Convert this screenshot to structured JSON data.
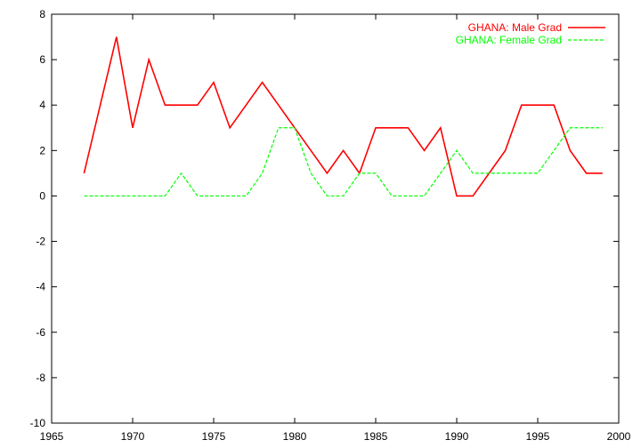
{
  "chart_data": {
    "type": "line",
    "title": "",
    "xlabel": "",
    "ylabel": "",
    "xlim": [
      1965,
      2000
    ],
    "ylim": [
      -10,
      8
    ],
    "x_ticks": [
      1965,
      1970,
      1975,
      1980,
      1985,
      1990,
      1995,
      2000
    ],
    "y_ticks": [
      -10,
      -8,
      -6,
      -4,
      -2,
      0,
      2,
      4,
      6,
      8
    ],
    "x_tick_labels": [
      "1965",
      "1970",
      "1975",
      "1980",
      "1985",
      "1990",
      "1995",
      "2000"
    ],
    "y_tick_labels": [
      "-10",
      "-8",
      "-6",
      "-4",
      "-2",
      "0",
      "2",
      "4",
      "6",
      "8"
    ],
    "grid": false,
    "legend_position": "top-right",
    "series": [
      {
        "name": "GHANA: Male Grad",
        "color": "#ff0000",
        "line_style": "solid",
        "x": [
          1967,
          1968,
          1969,
          1970,
          1971,
          1972,
          1973,
          1974,
          1975,
          1976,
          1977,
          1978,
          1979,
          1980,
          1981,
          1982,
          1983,
          1984,
          1985,
          1986,
          1987,
          1988,
          1989,
          1990,
          1991,
          1992,
          1993,
          1994,
          1995,
          1996,
          1997,
          1998,
          1999
        ],
        "values": [
          1,
          4,
          7,
          3,
          6,
          4,
          4,
          4,
          5,
          3,
          4,
          5,
          4,
          3,
          2,
          1,
          2,
          1,
          3,
          3,
          3,
          2,
          3,
          0,
          0,
          1,
          2,
          4,
          4,
          4,
          2,
          1,
          1
        ]
      },
      {
        "name": "GHANA: Female Grad",
        "color": "#00ff00",
        "line_style": "dashed",
        "x": [
          1967,
          1968,
          1969,
          1970,
          1971,
          1972,
          1973,
          1974,
          1975,
          1976,
          1977,
          1978,
          1979,
          1980,
          1981,
          1982,
          1983,
          1984,
          1985,
          1986,
          1987,
          1988,
          1989,
          1990,
          1991,
          1992,
          1993,
          1994,
          1995,
          1996,
          1997,
          1998,
          1999
        ],
        "values": [
          0,
          0,
          0,
          0,
          0,
          0,
          1,
          0,
          0,
          0,
          0,
          1,
          3,
          3,
          1,
          0,
          0,
          1,
          1,
          0,
          0,
          0,
          1,
          2,
          1,
          1,
          1,
          1,
          1,
          2,
          3,
          3,
          3
        ]
      }
    ]
  }
}
